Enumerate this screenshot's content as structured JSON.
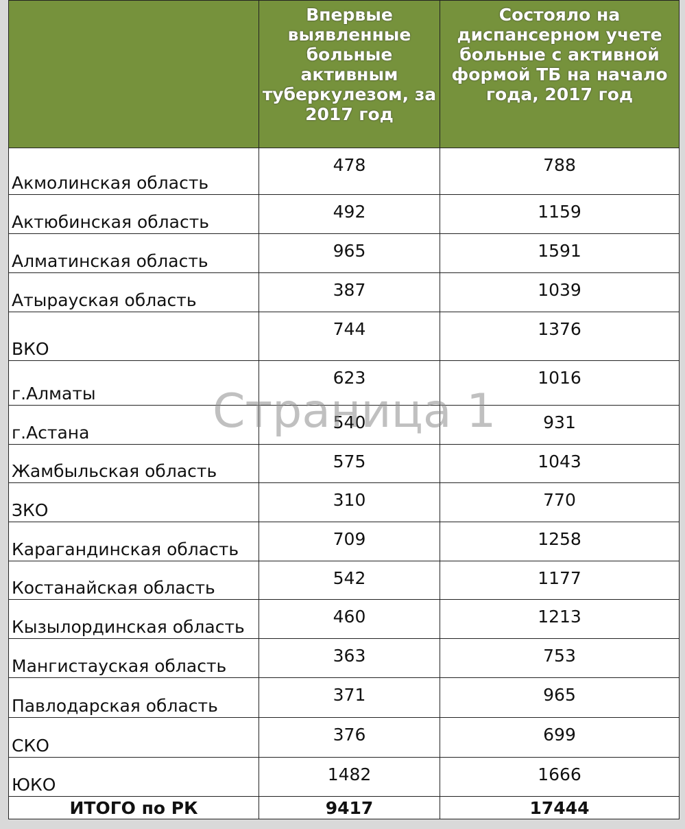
{
  "table": {
    "header": [
      "Впервые выявленные больные активным туберкулезом, за 2017 год",
      "Состояло на диспансерном учете больные с активной формой ТБ на начало года, 2017 год"
    ],
    "rows": [
      [
        "Акмолинская область",
        478,
        788
      ],
      [
        "Актюбинская область",
        492,
        1159
      ],
      [
        "Алматинская область",
        965,
        1591
      ],
      [
        "Атырауская область",
        387,
        1039
      ],
      [
        "ВКО",
        744,
        1376
      ],
      [
        "г.Алматы",
        623,
        1016
      ],
      [
        "г.Астана",
        540,
        931
      ],
      [
        "Жамбыльская область",
        575,
        1043
      ],
      [
        "ЗКО",
        310,
        770
      ],
      [
        "Карагандинская область",
        709,
        1258
      ],
      [
        "Костанайская область",
        542,
        1177
      ],
      [
        "Кызылординская область",
        460,
        1213
      ],
      [
        "Мангистауская область",
        363,
        753
      ],
      [
        "Павлодарская область",
        371,
        965
      ],
      [
        "СКО",
        376,
        699
      ],
      [
        "ЮКО",
        1482,
        1666
      ]
    ],
    "total": [
      "ИТОГО по РК",
      9417,
      17444
    ]
  },
  "watermark": "Страница 1"
}
